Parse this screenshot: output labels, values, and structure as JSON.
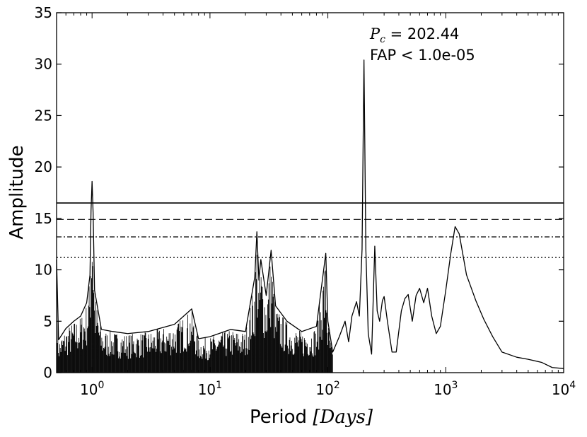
{
  "chart_data": {
    "type": "line",
    "title": "",
    "xlabel": {
      "text": "Period ",
      "math": "[Days]"
    },
    "ylabel": "Amplitude",
    "x_scale": "log",
    "xlim": [
      0.5,
      10000
    ],
    "ylim": [
      0,
      35
    ],
    "x_ticks": [
      {
        "value": 1,
        "base": "10",
        "exp": "0"
      },
      {
        "value": 10,
        "base": "10",
        "exp": "1"
      },
      {
        "value": 100,
        "base": "10",
        "exp": "2"
      },
      {
        "value": 1000,
        "base": "10",
        "exp": "3"
      },
      {
        "value": 10000,
        "base": "10",
        "exp": "4"
      }
    ],
    "y_ticks": [
      "0",
      "5",
      "10",
      "15",
      "20",
      "25",
      "30",
      "35"
    ],
    "grid": false,
    "annotation": {
      "symbol": "P",
      "subscript": "c",
      "value_text": " = 202.44",
      "fap_text": "FAP < 1.0e-05"
    },
    "threshold_lines": [
      {
        "y": 16.5,
        "style": "solid"
      },
      {
        "y": 14.9,
        "style": "dashed"
      },
      {
        "y": 13.2,
        "style": "dashdot"
      },
      {
        "y": 11.2,
        "style": "dotted"
      }
    ],
    "series": [
      {
        "points": [
          [
            0.5,
            11
          ],
          [
            0.52,
            3.2
          ],
          [
            0.6,
            4.3
          ],
          [
            0.7,
            5.0
          ],
          [
            0.8,
            5.5
          ],
          [
            0.9,
            6.8
          ],
          [
            0.96,
            9.5
          ],
          [
            0.98,
            15.8
          ],
          [
            1.0,
            18.6
          ],
          [
            1.02,
            15.6
          ],
          [
            1.05,
            8.0
          ],
          [
            1.2,
            4.2
          ],
          [
            1.5,
            4.0
          ],
          [
            2.0,
            3.8
          ],
          [
            3.0,
            4.0
          ],
          [
            5.0,
            4.7
          ],
          [
            7.0,
            6.2
          ],
          [
            8.0,
            3.3
          ],
          [
            10.0,
            3.5
          ],
          [
            15.0,
            4.2
          ],
          [
            20.0,
            4.0
          ],
          [
            24.0,
            9.3
          ],
          [
            25.0,
            13.7
          ],
          [
            26.0,
            9.0
          ],
          [
            27.0,
            11.0
          ],
          [
            30.0,
            7.5
          ],
          [
            33.0,
            11.9
          ],
          [
            36.0,
            6.5
          ],
          [
            45.0,
            5.0
          ],
          [
            60.0,
            4.0
          ],
          [
            80.0,
            4.5
          ],
          [
            96.0,
            11.6
          ],
          [
            100.0,
            5.0
          ],
          [
            110.0,
            2.0
          ],
          [
            125.0,
            3.5
          ],
          [
            140.0,
            5.0
          ],
          [
            150.0,
            3.0
          ],
          [
            160.0,
            5.5
          ],
          [
            175.0,
            6.9
          ],
          [
            185.0,
            5.5
          ],
          [
            195.0,
            12.0
          ],
          [
            202.44,
            30.4
          ],
          [
            210.0,
            12.0
          ],
          [
            220.0,
            3.8
          ],
          [
            235.0,
            1.8
          ],
          [
            250.0,
            12.3
          ],
          [
            262.0,
            6.0
          ],
          [
            275.0,
            5.0
          ],
          [
            290.0,
            7.0
          ],
          [
            300.0,
            7.4
          ],
          [
            320.0,
            5.0
          ],
          [
            350.0,
            2.0
          ],
          [
            380.0,
            2.0
          ],
          [
            420.0,
            6.0
          ],
          [
            450.0,
            7.2
          ],
          [
            480.0,
            7.6
          ],
          [
            520.0,
            5.0
          ],
          [
            560.0,
            7.5
          ],
          [
            600.0,
            8.2
          ],
          [
            650.0,
            6.8
          ],
          [
            700.0,
            8.2
          ],
          [
            760.0,
            5.5
          ],
          [
            830.0,
            3.8
          ],
          [
            900.0,
            4.5
          ],
          [
            1000.0,
            8.0
          ],
          [
            1100.0,
            11.5
          ],
          [
            1200.0,
            14.2
          ],
          [
            1300.0,
            13.5
          ],
          [
            1500.0,
            9.5
          ],
          [
            1800.0,
            7.0
          ],
          [
            2100.0,
            5.2
          ],
          [
            2500.0,
            3.5
          ],
          [
            3000.0,
            2.0
          ],
          [
            4000.0,
            1.5
          ],
          [
            5000.0,
            1.3
          ],
          [
            6500.0,
            1.0
          ],
          [
            8000.0,
            0.5
          ],
          [
            10000.0,
            0.4
          ]
        ]
      }
    ]
  }
}
